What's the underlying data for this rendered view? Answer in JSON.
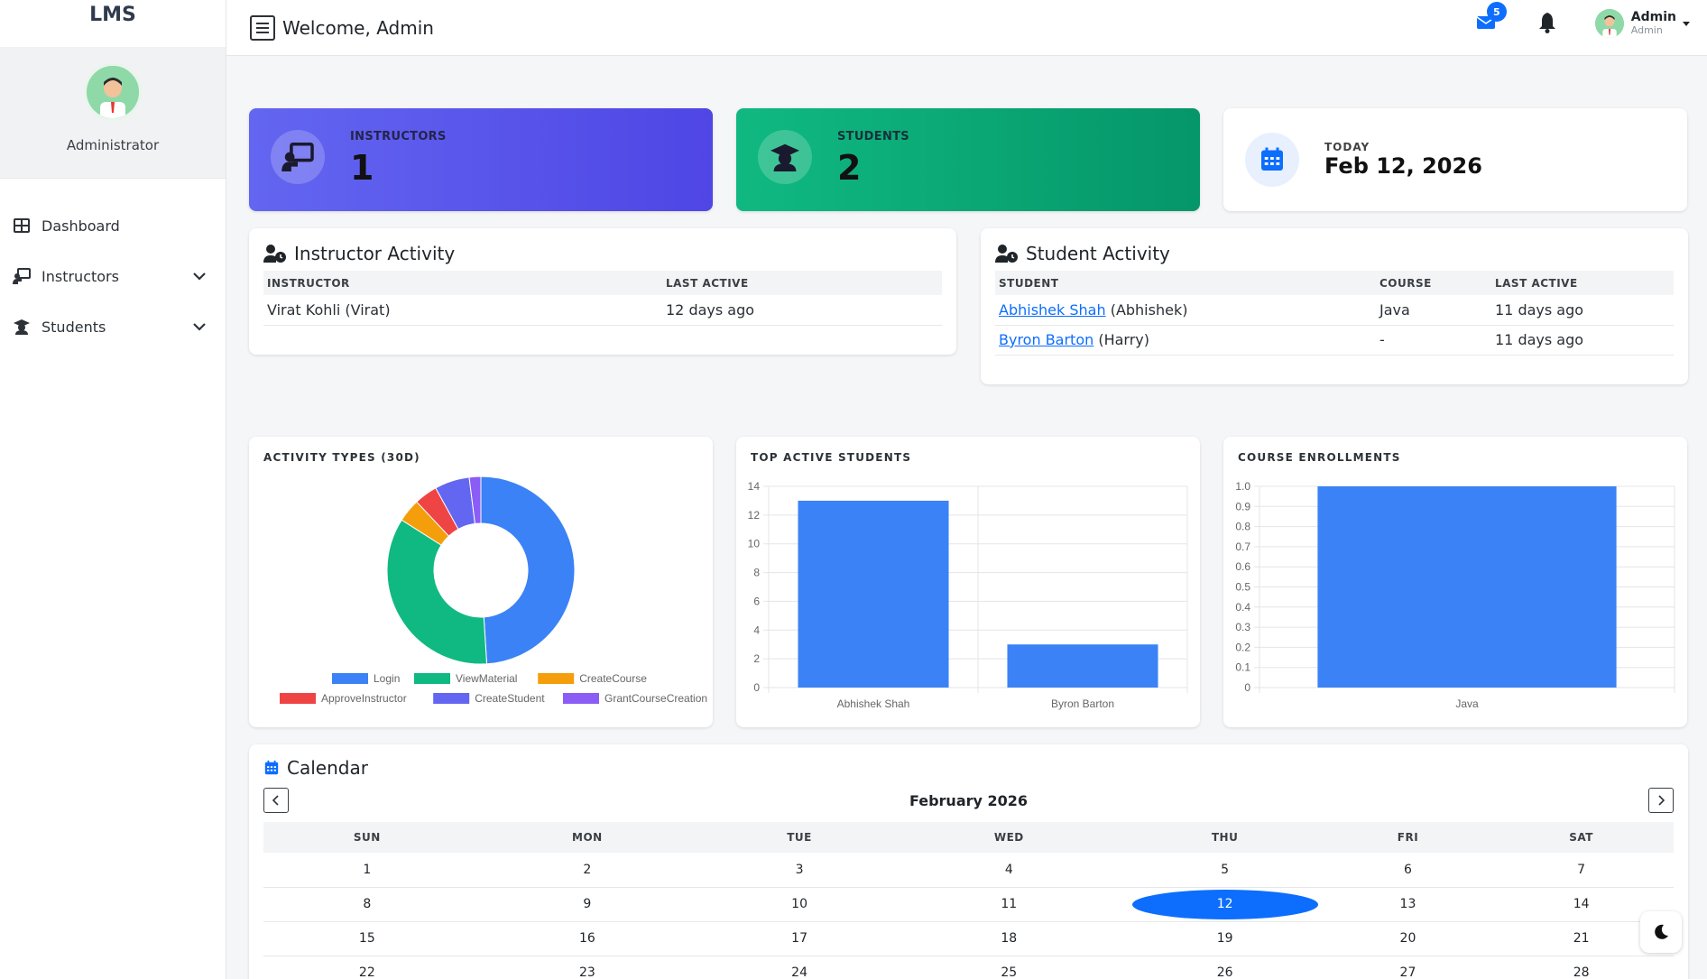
{
  "brand": "LMS",
  "profile": {
    "name": "Administrator"
  },
  "nav": [
    {
      "label": "Dashboard",
      "icon": "grid-icon",
      "expandable": false
    },
    {
      "label": "Instructors",
      "icon": "chalkboard-teacher-icon",
      "expandable": true
    },
    {
      "label": "Students",
      "icon": "graduate-icon",
      "expandable": true
    }
  ],
  "topbar": {
    "welcome": "Welcome, Admin",
    "mail_badge": "5",
    "user_name": "Admin",
    "user_role": "Admin"
  },
  "stats": {
    "instructors": {
      "label": "INSTRUCTORS",
      "value": "1",
      "color": "#4f46e5"
    },
    "students": {
      "label": "STUDENTS",
      "value": "2",
      "color": "#059669"
    },
    "today": {
      "label": "TODAY",
      "value": "Feb 12, 2026"
    }
  },
  "instructor_activity": {
    "title": "Instructor Activity",
    "headers": [
      "INSTRUCTOR",
      "LAST ACTIVE"
    ],
    "rows": [
      {
        "name": "Virat Kohli (Virat)",
        "last_active": "12 days ago"
      }
    ]
  },
  "student_activity": {
    "title": "Student Activity",
    "headers": [
      "STUDENT",
      "COURSE",
      "LAST ACTIVE"
    ],
    "rows": [
      {
        "link": "Abhishek Shah",
        "nick": " (Abhishek)",
        "course": "Java",
        "last_active": "11 days ago"
      },
      {
        "link": "Byron Barton",
        "nick": " (Harry)",
        "course": "-",
        "last_active": "11 days ago"
      }
    ]
  },
  "chart_data": [
    {
      "type": "pie",
      "title": "ACTIVITY TYPES (30D)",
      "legend_position": "bottom",
      "categories": [
        "Login",
        "ViewMaterial",
        "CreateCourse",
        "ApproveInstructor",
        "CreateStudent",
        "GrantCourseCreation"
      ],
      "values": [
        49,
        35,
        4,
        4,
        6,
        2
      ],
      "colors": [
        "#3b82f6",
        "#10b981",
        "#f59e0b",
        "#ef4444",
        "#6366f1",
        "#8b5cf6"
      ]
    },
    {
      "type": "bar",
      "title": "TOP ACTIVE STUDENTS",
      "categories": [
        "Abhishek Shah",
        "Byron Barton"
      ],
      "values": [
        13,
        3
      ],
      "ylim": [
        0,
        14
      ],
      "yticks": [
        0,
        2,
        4,
        6,
        8,
        10,
        12,
        14
      ],
      "grid": true,
      "color": "#3b82f6"
    },
    {
      "type": "bar",
      "title": "COURSE ENROLLMENTS",
      "categories": [
        "Java"
      ],
      "values": [
        1
      ],
      "ylim": [
        0,
        1
      ],
      "yticks": [
        0,
        0.1,
        0.2,
        0.3,
        0.4,
        0.5,
        0.6,
        0.7,
        0.8,
        0.9,
        1.0
      ],
      "grid": true,
      "color": "#3b82f6"
    }
  ],
  "calendar": {
    "title": "Calendar",
    "month": "February 2026",
    "days": [
      "SUN",
      "MON",
      "TUE",
      "WED",
      "THU",
      "FRI",
      "SAT"
    ],
    "weeks": [
      [
        "1",
        "2",
        "3",
        "4",
        "5",
        "6",
        "7"
      ],
      [
        "8",
        "9",
        "10",
        "11",
        "12",
        "13",
        "14"
      ],
      [
        "15",
        "16",
        "17",
        "18",
        "19",
        "20",
        "21"
      ],
      [
        "22",
        "23",
        "24",
        "25",
        "26",
        "27",
        "28"
      ]
    ],
    "today": "12"
  }
}
